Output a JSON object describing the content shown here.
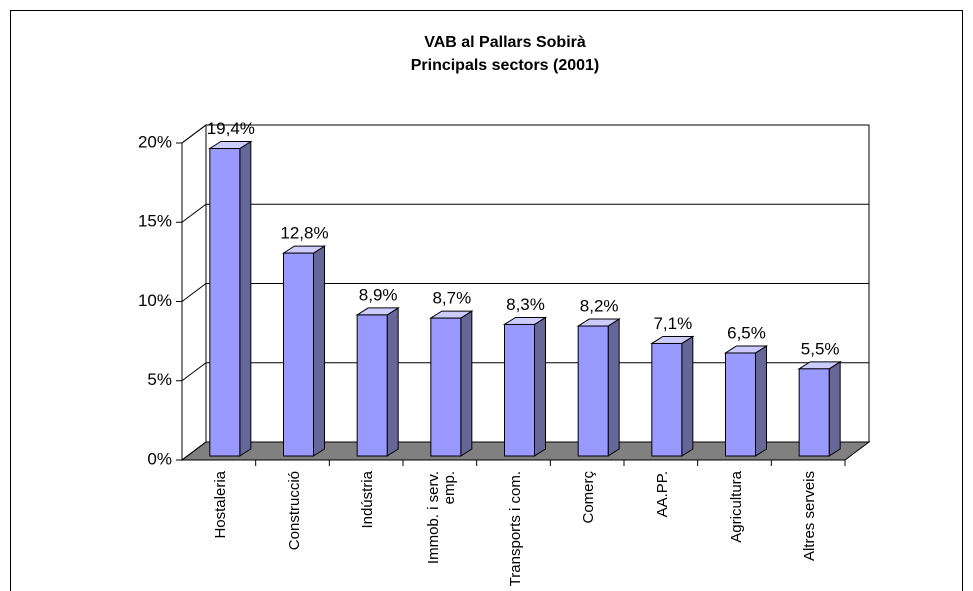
{
  "chart_data": {
    "type": "bar3d",
    "title": "VAB al Pallars Sobirà",
    "subtitle": "Principals sectors (2001)",
    "categories": [
      "Hostaleria",
      "Construcció",
      "Indústria",
      "Immob. i serv. emp.",
      "Transports i com.",
      "Comerç",
      "AA.PP.",
      "Agricultura",
      "Altres serveis"
    ],
    "values": [
      19.4,
      12.8,
      8.9,
      8.7,
      8.3,
      8.2,
      7.1,
      6.5,
      5.5
    ],
    "value_labels": [
      "19,4%",
      "12,8%",
      "8,9%",
      "8,7%",
      "8,3%",
      "8,2%",
      "7,1%",
      "6,5%",
      "5,5%"
    ],
    "color": "#9999ff",
    "ylim": [
      0,
      20
    ],
    "yticks": [
      {
        "value": 0,
        "label": "0%"
      },
      {
        "value": 5,
        "label": "5%"
      },
      {
        "value": 10,
        "label": "10%"
      },
      {
        "value": 15,
        "label": "15%"
      },
      {
        "value": 20,
        "label": "20%"
      }
    ],
    "grid": true
  }
}
